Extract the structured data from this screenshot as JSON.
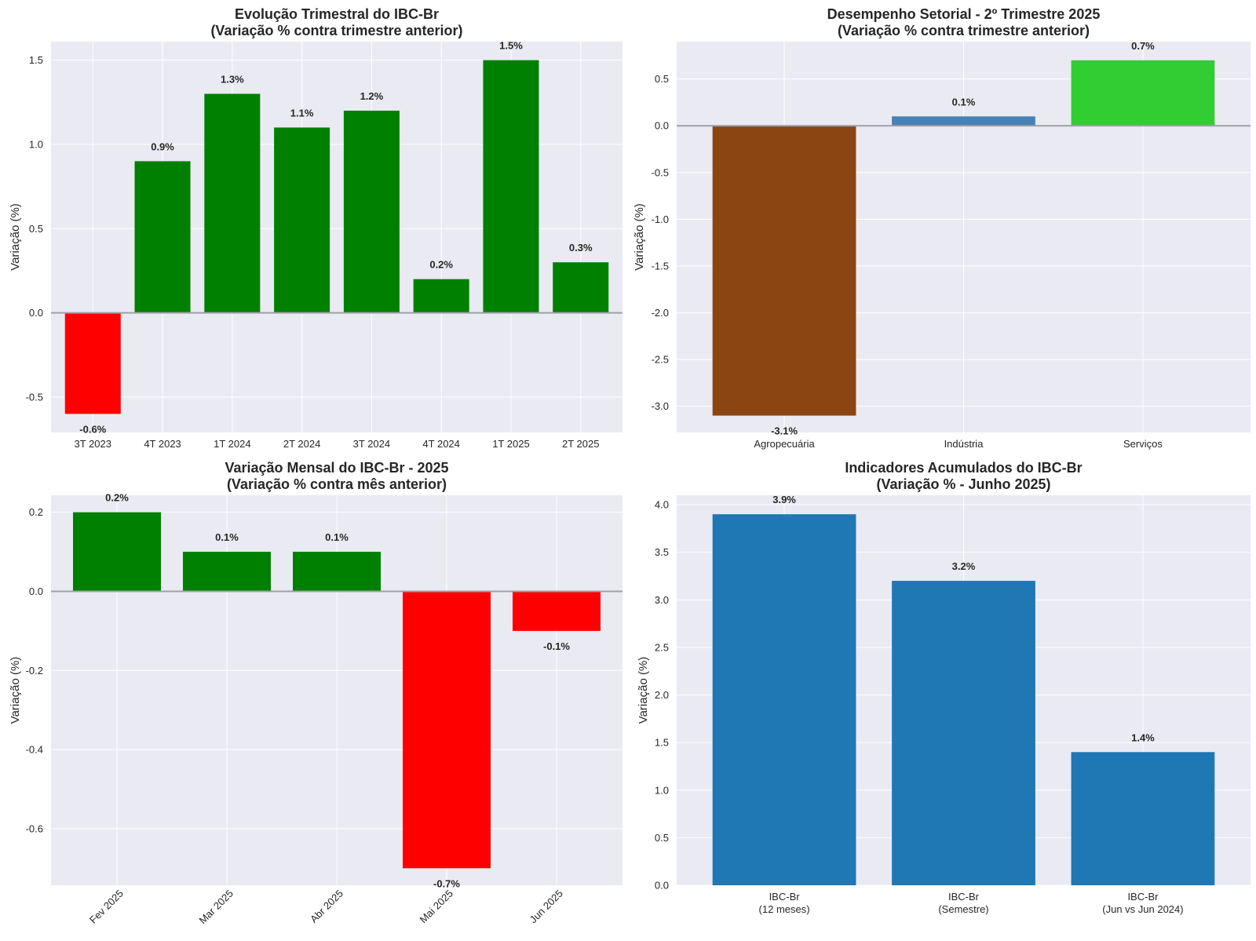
{
  "chart_data": [
    {
      "id": "quarterly",
      "type": "bar",
      "title": "Evolução Trimestral do IBC-Br",
      "subtitle": "(Variação % contra trimestre anterior)",
      "xlabel": "",
      "ylabel": "Variação (%)",
      "categories": [
        "3T 2023",
        "4T 2023",
        "1T 2024",
        "2T 2024",
        "3T 2024",
        "4T 2024",
        "1T 2025",
        "2T 2025"
      ],
      "values": [
        -0.6,
        0.9,
        1.3,
        1.1,
        1.2,
        0.2,
        1.5,
        0.3
      ],
      "data_labels": [
        "-0.6%",
        "0.9%",
        "1.3%",
        "1.1%",
        "1.2%",
        "0.2%",
        "1.5%",
        "0.3%"
      ],
      "colors": [
        "#ff0000",
        "#008000",
        "#008000",
        "#008000",
        "#008000",
        "#008000",
        "#008000",
        "#008000"
      ],
      "ylim": [
        -0.71,
        1.61
      ],
      "yticks": [
        -0.5,
        0.0,
        0.5,
        1.0,
        1.5
      ],
      "ytick_labels": [
        "-0.5",
        "0.0",
        "0.5",
        "1.0",
        "1.5"
      ],
      "xtick_rotation": 0,
      "grid": true,
      "zero_line": true
    },
    {
      "id": "sectoral",
      "type": "bar",
      "title": "Desempenho Setorial - 2º Trimestre 2025",
      "subtitle": "(Variação % contra trimestre anterior)",
      "xlabel": "",
      "ylabel": "Variação (%)",
      "categories": [
        "Agropecuária",
        "Indústria",
        "Serviços"
      ],
      "values": [
        -3.1,
        0.1,
        0.7
      ],
      "data_labels": [
        "-3.1%",
        "0.1%",
        "0.7%"
      ],
      "colors": [
        "#8b4513",
        "#4682b4",
        "#32cd32"
      ],
      "ylim": [
        -3.28,
        0.9
      ],
      "yticks": [
        -3.0,
        -2.5,
        -2.0,
        -1.5,
        -1.0,
        -0.5,
        0.0,
        0.5
      ],
      "ytick_labels": [
        "-3.0",
        "-2.5",
        "-2.0",
        "-1.5",
        "-1.0",
        "-0.5",
        "0.0",
        "0.5"
      ],
      "xtick_rotation": 0,
      "grid": true,
      "zero_line": true
    },
    {
      "id": "monthly",
      "type": "bar",
      "title": "Variação Mensal do IBC-Br - 2025",
      "subtitle": "(Variação % contra mês anterior)",
      "xlabel": "",
      "ylabel": "Variação (%)",
      "categories": [
        "Fev 2025",
        "Mar 2025",
        "Abr 2025",
        "Mai 2025",
        "Jun 2025"
      ],
      "values": [
        0.2,
        0.1,
        0.1,
        -0.7,
        -0.1
      ],
      "data_labels": [
        "0.2%",
        "0.1%",
        "0.1%",
        "-0.7%",
        "-0.1%"
      ],
      "colors": [
        "#008000",
        "#008000",
        "#008000",
        "#ff0000",
        "#ff0000"
      ],
      "ylim": [
        -0.743,
        0.243
      ],
      "yticks": [
        -0.6,
        -0.4,
        -0.2,
        0.0,
        0.2
      ],
      "ytick_labels": [
        "-0.6",
        "-0.4",
        "-0.2",
        "0.0",
        "0.2"
      ],
      "xtick_rotation": 45,
      "grid": true,
      "zero_line": true
    },
    {
      "id": "accumulated",
      "type": "bar",
      "title": "Indicadores Acumulados do IBC-Br",
      "subtitle": "(Variação % - Junho 2025)",
      "xlabel": "",
      "ylabel": "Variação (%)",
      "categories": [
        "IBC-Br\n(12 meses)",
        "IBC-Br\n(Semestre)",
        "IBC-Br\n(Jun vs Jun 2024)"
      ],
      "values": [
        3.9,
        3.2,
        1.4
      ],
      "data_labels": [
        "3.9%",
        "3.2%",
        "1.4%"
      ],
      "colors": [
        "#1f77b4",
        "#1f77b4",
        "#1f77b4"
      ],
      "ylim": [
        0.0,
        4.1
      ],
      "yticks": [
        0.0,
        0.5,
        1.0,
        1.5,
        2.0,
        2.5,
        3.0,
        3.5,
        4.0
      ],
      "ytick_labels": [
        "0.0",
        "0.5",
        "1.0",
        "1.5",
        "2.0",
        "2.5",
        "3.0",
        "3.5",
        "4.0"
      ],
      "xtick_rotation": 0,
      "grid": true,
      "zero_line": false
    }
  ],
  "style": {
    "plot_background": "#eaeaf2",
    "grid_color": "#ffffff",
    "zero_line_color": "#a0a0a8",
    "text_color": "#262626"
  }
}
